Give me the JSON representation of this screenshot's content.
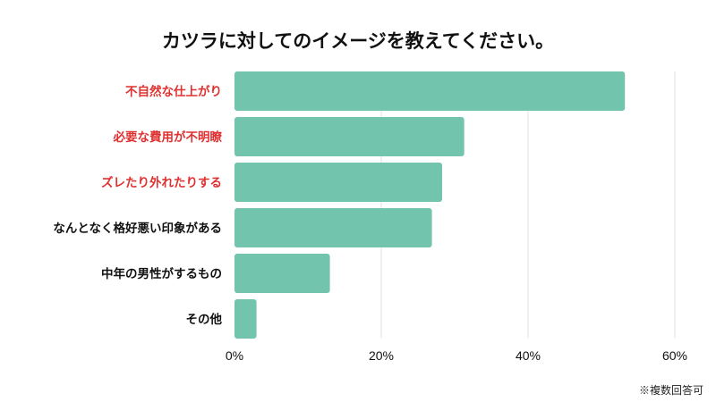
{
  "chart_data": {
    "type": "bar",
    "orientation": "horizontal",
    "title": "カツラに対してのイメージを教えてください。",
    "categories": [
      "不自然な仕上がり",
      "必要な費用が不明瞭",
      "ズレたり外れたりする",
      "なんとなく格好悪い印象がある",
      "中年の男性がするもの",
      "その他"
    ],
    "values": [
      53.2,
      31.3,
      28.3,
      26.9,
      13.0,
      3.0
    ],
    "unit": "%",
    "xlim": [
      0,
      60
    ],
    "xticks": [
      "0%",
      "20%",
      "40%",
      "60%"
    ],
    "grid": true,
    "highlighted_categories": [
      0,
      1,
      2
    ],
    "colors": {
      "bar": "#72c4ad",
      "highlight_label": "#e03030",
      "label": "#111111",
      "grid": "#e2e2e2"
    },
    "note": "※複数回答可"
  }
}
